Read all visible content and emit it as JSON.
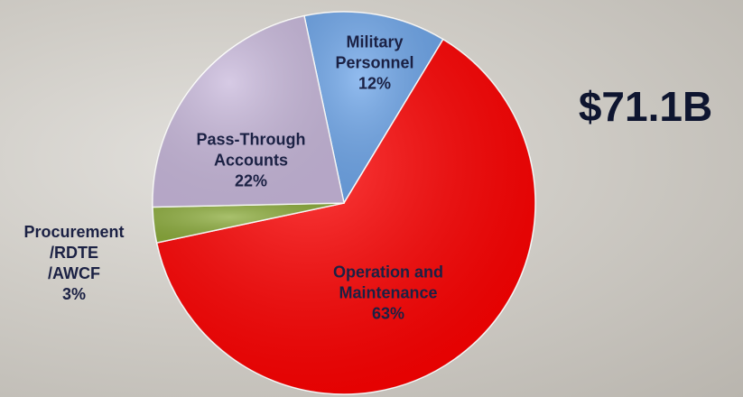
{
  "chart_data": {
    "type": "pie",
    "title": "$71.1B",
    "categories": [
      "Military Personnel",
      "Operation and Maintenance",
      "Procurement /RDTE /AWCF",
      "Pass-Through Accounts"
    ],
    "values": [
      12,
      63,
      3,
      22
    ],
    "value_labels": [
      "12%",
      "63%",
      "3%",
      "22%"
    ],
    "colors": [
      "#6ea6ea",
      "#ff0000",
      "#8cac3c",
      "#c9b9dc"
    ]
  }
}
